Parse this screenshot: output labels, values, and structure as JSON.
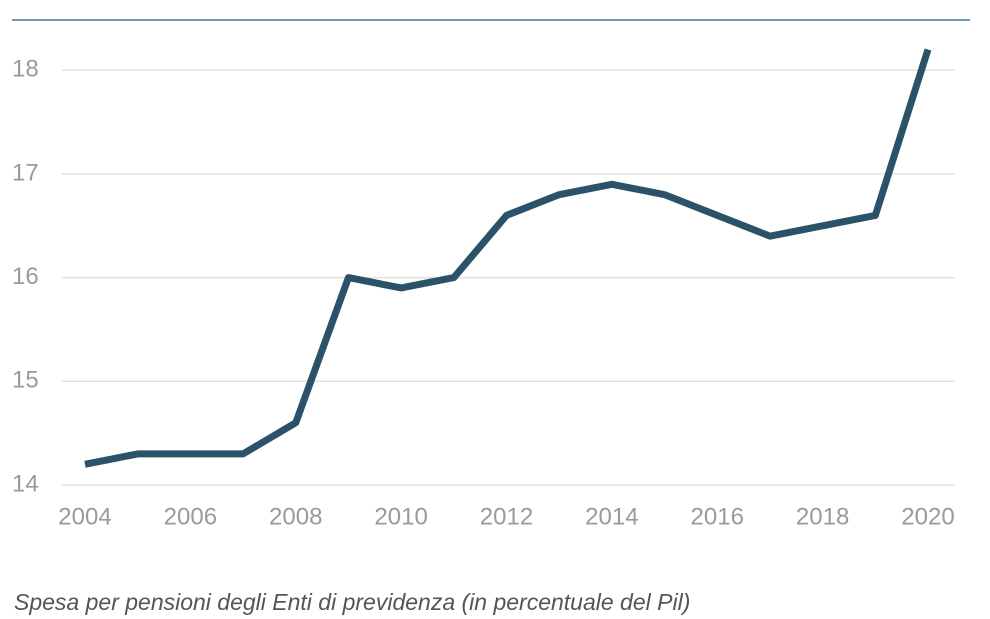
{
  "chart_data": {
    "type": "line",
    "caption": "Spesa per pensioni degli Enti di previdenza (in percentuale del Pil)",
    "x": [
      2004,
      2005,
      2006,
      2007,
      2008,
      2009,
      2010,
      2011,
      2012,
      2013,
      2014,
      2015,
      2016,
      2017,
      2018,
      2019,
      2020
    ],
    "series": [
      {
        "color": "#2b5268",
        "values": [
          14.2,
          14.3,
          14.3,
          14.3,
          14.6,
          16.0,
          15.9,
          16.0,
          16.6,
          16.8,
          16.9,
          16.8,
          16.6,
          16.4,
          16.5,
          16.6,
          18.2
        ]
      }
    ],
    "xlim": [
      2004,
      2020
    ],
    "xticks": [
      2004,
      2006,
      2008,
      2010,
      2012,
      2014,
      2016,
      2018,
      2020
    ],
    "ylim": [
      14,
      18.2
    ],
    "yticks": [
      14,
      15,
      16,
      17,
      18
    ],
    "grid": true
  }
}
